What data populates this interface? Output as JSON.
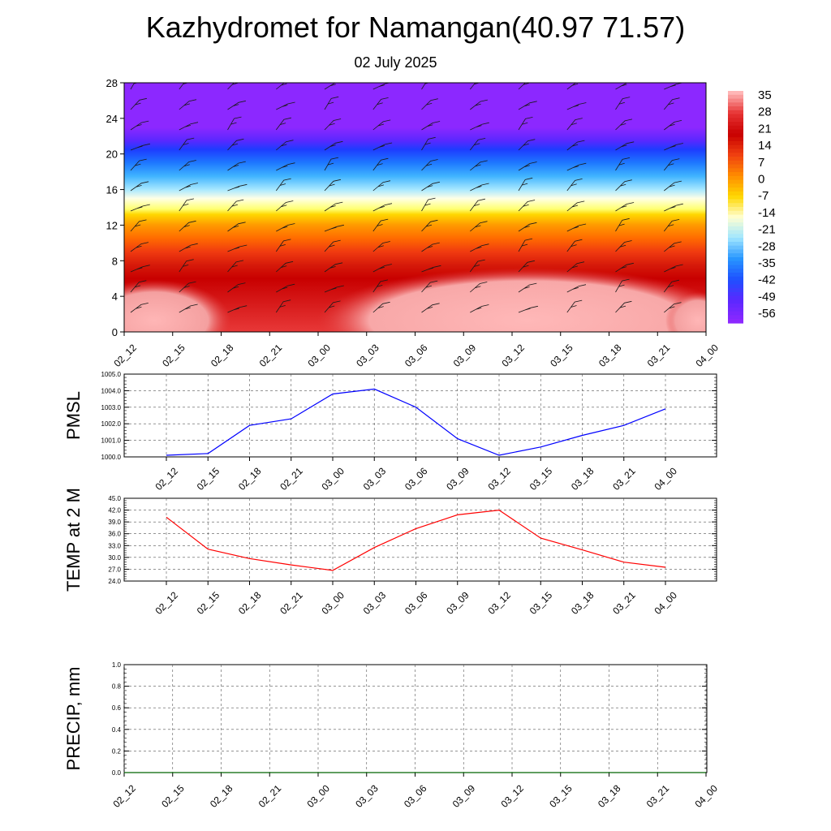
{
  "title": "Kazhydromet for Namangan(40.97 71.57)",
  "subtitle": "02 July 2025",
  "time_labels": [
    "02_12",
    "02_15",
    "02_18",
    "02_21",
    "03_00",
    "03_03",
    "03_06",
    "03_09",
    "03_12",
    "03_15",
    "03_18",
    "03_21",
    "04_00"
  ],
  "chart_data": [
    {
      "type": "heatmap",
      "ylim": [
        0,
        28
      ],
      "yticks": [
        "0",
        "4",
        "8",
        "12",
        "16",
        "20",
        "24",
        "28"
      ],
      "x": [
        "02_12",
        "02_15",
        "02_18",
        "02_21",
        "03_00",
        "03_03",
        "03_06",
        "03_09",
        "03_12",
        "03_15",
        "03_18",
        "03_21",
        "04_00"
      ],
      "colorbar": {
        "labels": [
          "35",
          "28",
          "21",
          "14",
          "7",
          "0",
          "-7",
          "-14",
          "-21",
          "-28",
          "-35",
          "-42",
          "-49",
          "-56"
        ],
        "colors": [
          "#ffb6b6",
          "#e63232",
          "#c80000",
          "#f04010",
          "#ff8c00",
          "#ffd700",
          "#ffffd2",
          "#a0e6ff",
          "#2896ff",
          "#1e50ff",
          "#5a28ff",
          "#8c28ff"
        ]
      },
      "wind_barbs": true
    },
    {
      "type": "line",
      "ylabel": "PMSL",
      "ylim": [
        1000,
        1005
      ],
      "yticks": [
        "1000.0",
        "1001.0",
        "1002.0",
        "1003.0",
        "1004.0",
        "1005.0"
      ],
      "x": [
        "02_12",
        "02_15",
        "02_18",
        "02_21",
        "03_00",
        "03_03",
        "03_06",
        "03_09",
        "03_12",
        "03_15",
        "03_18",
        "03_21",
        "04_00"
      ],
      "values": [
        1000.1,
        1000.2,
        1001.9,
        1002.3,
        1003.8,
        1004.1,
        1003.0,
        1001.1,
        1000.1,
        1000.6,
        1001.3,
        1001.9,
        1002.9
      ],
      "color": "#0000ff",
      "grid": true
    },
    {
      "type": "line",
      "ylabel": "TEMP at 2 M",
      "ylim": [
        24,
        45
      ],
      "yticks": [
        "24.0",
        "27.0",
        "30.0",
        "33.0",
        "36.0",
        "39.0",
        "42.0",
        "45.0"
      ],
      "x": [
        "02_12",
        "02_15",
        "02_18",
        "02_21",
        "03_00",
        "03_03",
        "03_06",
        "03_09",
        "03_12",
        "03_15",
        "03_18",
        "03_21",
        "04_00"
      ],
      "values": [
        40.2,
        32.1,
        29.7,
        28.1,
        26.7,
        32.5,
        37.3,
        40.8,
        42.0,
        34.9,
        31.9,
        28.8,
        27.5
      ],
      "color": "#ff0000",
      "grid": true
    },
    {
      "type": "line",
      "ylabel": "PRECIP, mm",
      "ylim": [
        0,
        1
      ],
      "yticks": [
        "0.0",
        "0.2",
        "0.4",
        "0.6",
        "0.8",
        "1.0"
      ],
      "x": [
        "02_12",
        "02_15",
        "02_18",
        "02_21",
        "03_00",
        "03_03",
        "03_06",
        "03_09",
        "03_12",
        "03_15",
        "03_18",
        "03_21",
        "04_00"
      ],
      "values": [
        0,
        0,
        0,
        0,
        0,
        0,
        0,
        0,
        0,
        0,
        0,
        0,
        0
      ],
      "color": "#006400",
      "grid": true
    }
  ]
}
